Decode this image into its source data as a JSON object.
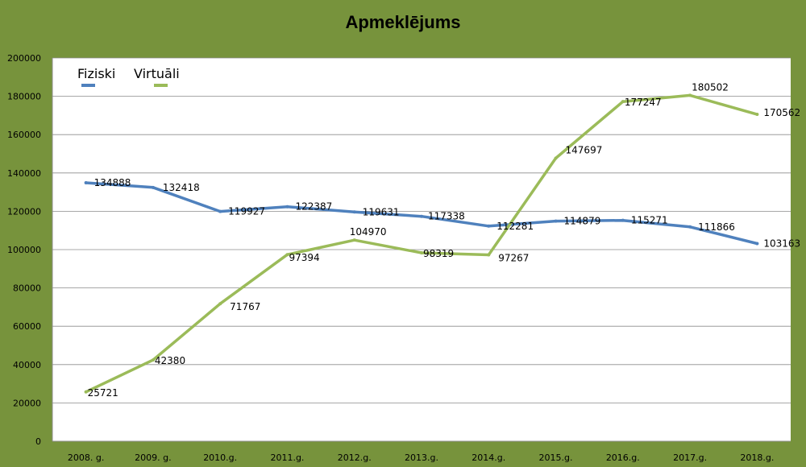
{
  "chart_data": {
    "type": "line",
    "title": "Apmeklējums",
    "categories": [
      "2008. g.",
      "2009. g.",
      "2010.g.",
      "2011.g.",
      "2012.g.",
      "2013.g.",
      "2014.g.",
      "2015.g.",
      "2016.g.",
      "2017.g.",
      "2018.g."
    ],
    "ylim": [
      0,
      200000
    ],
    "yticks": [
      "0",
      "20000",
      "40000",
      "60000",
      "80000",
      "100000",
      "120000",
      "140000",
      "160000",
      "180000",
      "200000"
    ],
    "grid": true,
    "legend_position": "top-left",
    "series": [
      {
        "name": "Fiziski",
        "color": "#4f81bd",
        "values": [
          134888,
          132418,
          119927,
          122387,
          119631,
          117338,
          112281,
          114879,
          115271,
          111866,
          103163
        ],
        "labels": [
          "134888",
          "132418",
          "119927",
          "122387",
          "119631",
          "117338",
          "112281",
          "114879",
          "115271",
          "111866",
          "103163"
        ]
      },
      {
        "name": "Virtuāli",
        "color": "#9bbb59",
        "values": [
          25721,
          42380,
          71767,
          97394,
          104970,
          98319,
          97267,
          147697,
          177247,
          180502,
          170562
        ],
        "labels": [
          "25721",
          "42380",
          "71767",
          "97394",
          "104970",
          "98319",
          "97267",
          "147697",
          "177247",
          "180502",
          "170562"
        ]
      }
    ]
  }
}
